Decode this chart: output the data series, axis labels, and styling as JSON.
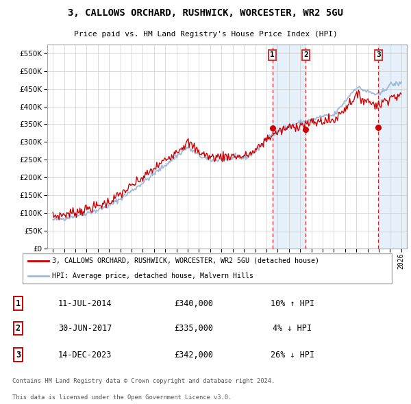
{
  "title": "3, CALLOWS ORCHARD, RUSHWICK, WORCESTER, WR2 5GU",
  "subtitle": "Price paid vs. HM Land Registry's House Price Index (HPI)",
  "legend_line1": "3, CALLOWS ORCHARD, RUSHWICK, WORCESTER, WR2 5GU (detached house)",
  "legend_line2": "HPI: Average price, detached house, Malvern Hills",
  "footer1": "Contains HM Land Registry data © Crown copyright and database right 2024.",
  "footer2": "This data is licensed under the Open Government Licence v3.0.",
  "transactions": [
    {
      "label": "1",
      "date": "11-JUL-2014",
      "price": "£340,000",
      "hpi": "10% ↑ HPI",
      "x": 2014.53
    },
    {
      "label": "2",
      "date": "30-JUN-2017",
      "price": "£335,000",
      "hpi": "4% ↓ HPI",
      "x": 2017.5
    },
    {
      "label": "3",
      "date": "14-DEC-2023",
      "price": "£342,000",
      "hpi": "26% ↓ HPI",
      "x": 2023.96
    }
  ],
  "transaction_prices": [
    340000,
    335000,
    342000
  ],
  "hpi_key_years": [
    1995,
    1996,
    1997,
    1998,
    1999,
    2000,
    2001,
    2002,
    2003,
    2004,
    2005,
    2006,
    2007,
    2008,
    2009,
    2010,
    2011,
    2012,
    2013,
    2014,
    2015,
    2016,
    2017,
    2018,
    2019,
    2020,
    2021,
    2022,
    2023,
    2024,
    2025,
    2026
  ],
  "hpi_key_values": [
    80000,
    85000,
    92000,
    100000,
    108000,
    120000,
    140000,
    162000,
    185000,
    210000,
    235000,
    260000,
    285000,
    262000,
    248000,
    252000,
    255000,
    255000,
    272000,
    308000,
    330000,
    345000,
    355000,
    362000,
    372000,
    375000,
    415000,
    455000,
    442000,
    432000,
    462000,
    465000
  ],
  "ylim": [
    0,
    575000
  ],
  "yticks": [
    0,
    50000,
    100000,
    150000,
    200000,
    250000,
    300000,
    350000,
    400000,
    450000,
    500000,
    550000
  ],
  "xlim": [
    1994.5,
    2026.5
  ],
  "background_color": "#ffffff",
  "grid_color": "#cccccc",
  "hpi_color": "#a0b8d8",
  "price_color": "#cc0000",
  "shade_color": "#d0e4f7",
  "vline_color": "#cc0000"
}
